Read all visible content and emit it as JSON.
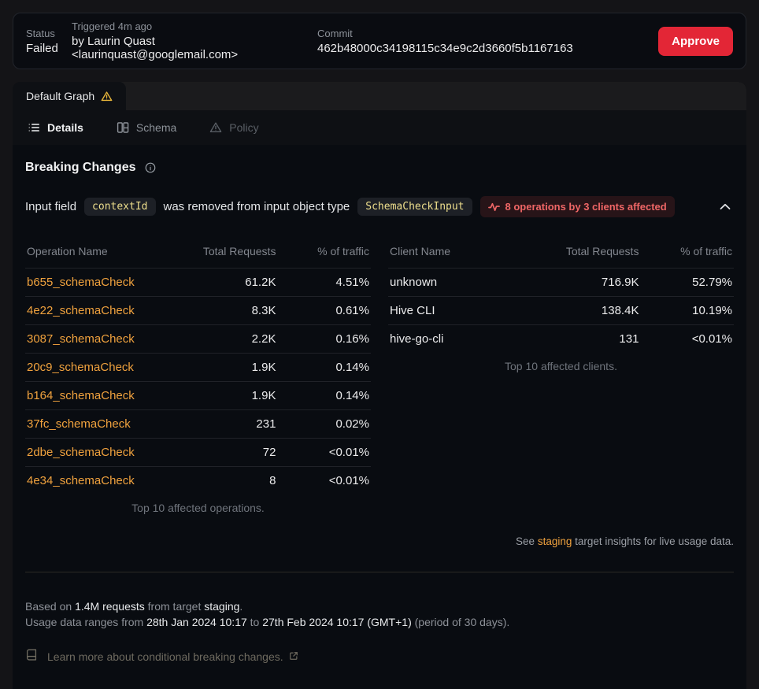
{
  "colors": {
    "accent_orange": "#f0a23e",
    "approve_red": "#e32636",
    "badge_red": "#ef6666",
    "code_yellow": "#eedf8d",
    "warning_yellow": "#e7b53a"
  },
  "header": {
    "status_label": "Status",
    "status_value": "Failed",
    "triggered_label": "Triggered 4m ago",
    "triggered_value": "by Laurin Quast <laurinquast@googlemail.com>",
    "commit_label": "Commit",
    "commit_value": "462b48000c34198115c34e9c2d3660f5b1167163",
    "approve_label": "Approve"
  },
  "graph_tab": {
    "label": "Default Graph"
  },
  "nav": {
    "details": "Details",
    "schema": "Schema",
    "policy": "Policy"
  },
  "breaking": {
    "title": "Breaking Changes",
    "change": {
      "prefix": "Input field",
      "field_code": "contextId",
      "middle": "was removed from input object type",
      "type_code": "SchemaCheckInput",
      "affected_badge": "8 operations by 3 clients affected"
    },
    "operations_table": {
      "headers": [
        "Operation Name",
        "Total Requests",
        "% of traffic"
      ],
      "rows": [
        [
          "b655_schemaCheck",
          "61.2K",
          "4.51%"
        ],
        [
          "4e22_schemaCheck",
          "8.3K",
          "0.61%"
        ],
        [
          "3087_schemaCheck",
          "2.2K",
          "0.16%"
        ],
        [
          "20c9_schemaCheck",
          "1.9K",
          "0.14%"
        ],
        [
          "b164_schemaCheck",
          "1.9K",
          "0.14%"
        ],
        [
          "37fc_schemaCheck",
          "231",
          "0.02%"
        ],
        [
          "2dbe_schemaCheck",
          "72",
          "<0.01%"
        ],
        [
          "4e34_schemaCheck",
          "8",
          "<0.01%"
        ]
      ],
      "caption": "Top 10 affected operations."
    },
    "clients_table": {
      "headers": [
        "Client Name",
        "Total Requests",
        "% of traffic"
      ],
      "rows": [
        [
          "unknown",
          "716.9K",
          "52.79%"
        ],
        [
          "Hive CLI",
          "138.4K",
          "10.19%"
        ],
        [
          "hive-go-cli",
          "131",
          "<0.01%"
        ]
      ],
      "caption": "Top 10 affected clients."
    },
    "see_note": {
      "pre": "See ",
      "link": "staging",
      "post": " target insights for live usage data."
    }
  },
  "footer": {
    "based": {
      "pre": "Based on ",
      "requests": "1.4M requests",
      "mid": " from target ",
      "target": "staging",
      "post": "."
    },
    "range": {
      "pre": "Usage data ranges from ",
      "from": "28th Jan 2024 10:17",
      "to_word": " to ",
      "to": "27th Feb 2024 10:17 (GMT+1)",
      "post": " (period of 30 days)."
    },
    "learn_more": "Learn more about conditional breaking changes."
  }
}
